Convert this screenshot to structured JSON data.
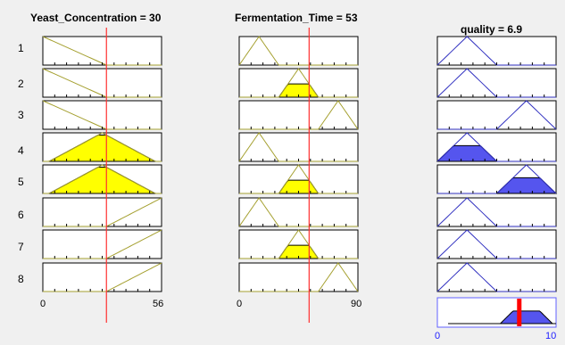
{
  "window": {
    "background": "#f0f0f0"
  },
  "inputs": [
    {
      "header": "Yeast_Concentration = 30",
      "value": 30,
      "range": [
        0,
        56
      ],
      "range_labels": [
        "0",
        "56"
      ],
      "mfs": [
        {
          "type": "zmf",
          "params": [
            0,
            30
          ]
        },
        {
          "type": "zmf",
          "params": [
            0,
            30
          ]
        },
        {
          "type": "zmf",
          "params": [
            0,
            30
          ]
        },
        {
          "type": "trimf",
          "params": [
            3,
            28,
            53
          ]
        },
        {
          "type": "trimf",
          "params": [
            3,
            28,
            53
          ]
        },
        {
          "type": "smf",
          "params": [
            30,
            56
          ]
        },
        {
          "type": "smf",
          "params": [
            30,
            56
          ]
        },
        {
          "type": "smf",
          "params": [
            30,
            56
          ]
        }
      ]
    },
    {
      "header": "Fermentation_Time = 53",
      "value": 53,
      "range": [
        0,
        90
      ],
      "range_labels": [
        "0",
        "90"
      ],
      "mfs": [
        {
          "type": "trimf",
          "params": [
            0,
            15,
            30
          ]
        },
        {
          "type": "trimf",
          "params": [
            30,
            45,
            60
          ]
        },
        {
          "type": "trimf",
          "params": [
            60,
            75,
            90
          ]
        },
        {
          "type": "trimf",
          "params": [
            0,
            15,
            30
          ]
        },
        {
          "type": "trimf",
          "params": [
            30,
            45,
            60
          ]
        },
        {
          "type": "trimf",
          "params": [
            0,
            15,
            30
          ]
        },
        {
          "type": "trimf",
          "params": [
            30,
            45,
            60
          ]
        },
        {
          "type": "trimf",
          "params": [
            60,
            75,
            90
          ]
        }
      ]
    }
  ],
  "output": {
    "header": "quality = 6.9",
    "value": 6.9,
    "range": [
      0,
      10
    ],
    "range_labels": [
      "0",
      "10"
    ],
    "mfs": [
      {
        "type": "trimf",
        "params": [
          0,
          2.5,
          5
        ]
      },
      {
        "type": "trimf",
        "params": [
          0,
          2.5,
          5
        ]
      },
      {
        "type": "trimf",
        "params": [
          5,
          7.5,
          10
        ]
      },
      {
        "type": "trimf",
        "params": [
          0,
          2.5,
          5
        ]
      },
      {
        "type": "trimf",
        "params": [
          5,
          7.5,
          10
        ]
      },
      {
        "type": "trimf",
        "params": [
          0,
          2.5,
          5
        ]
      },
      {
        "type": "trimf",
        "params": [
          0,
          2.5,
          5
        ]
      },
      {
        "type": "trimf",
        "params": [
          0,
          2.5,
          5
        ]
      }
    ]
  },
  "rules": [
    "1",
    "2",
    "3",
    "4",
    "5",
    "6",
    "7",
    "8"
  ],
  "firing": [
    0,
    0,
    0,
    0.55,
    0.55,
    0,
    0,
    0
  ],
  "colors": {
    "input_mf": "#a5a030",
    "output_mf": "#3030c0",
    "input_fill": "#ffff00",
    "output_fill": "#5555ee",
    "marker": "#ff3030",
    "output_marker": "#ff0000",
    "agg_border": "#6060ff",
    "tick": "#2020ff"
  }
}
